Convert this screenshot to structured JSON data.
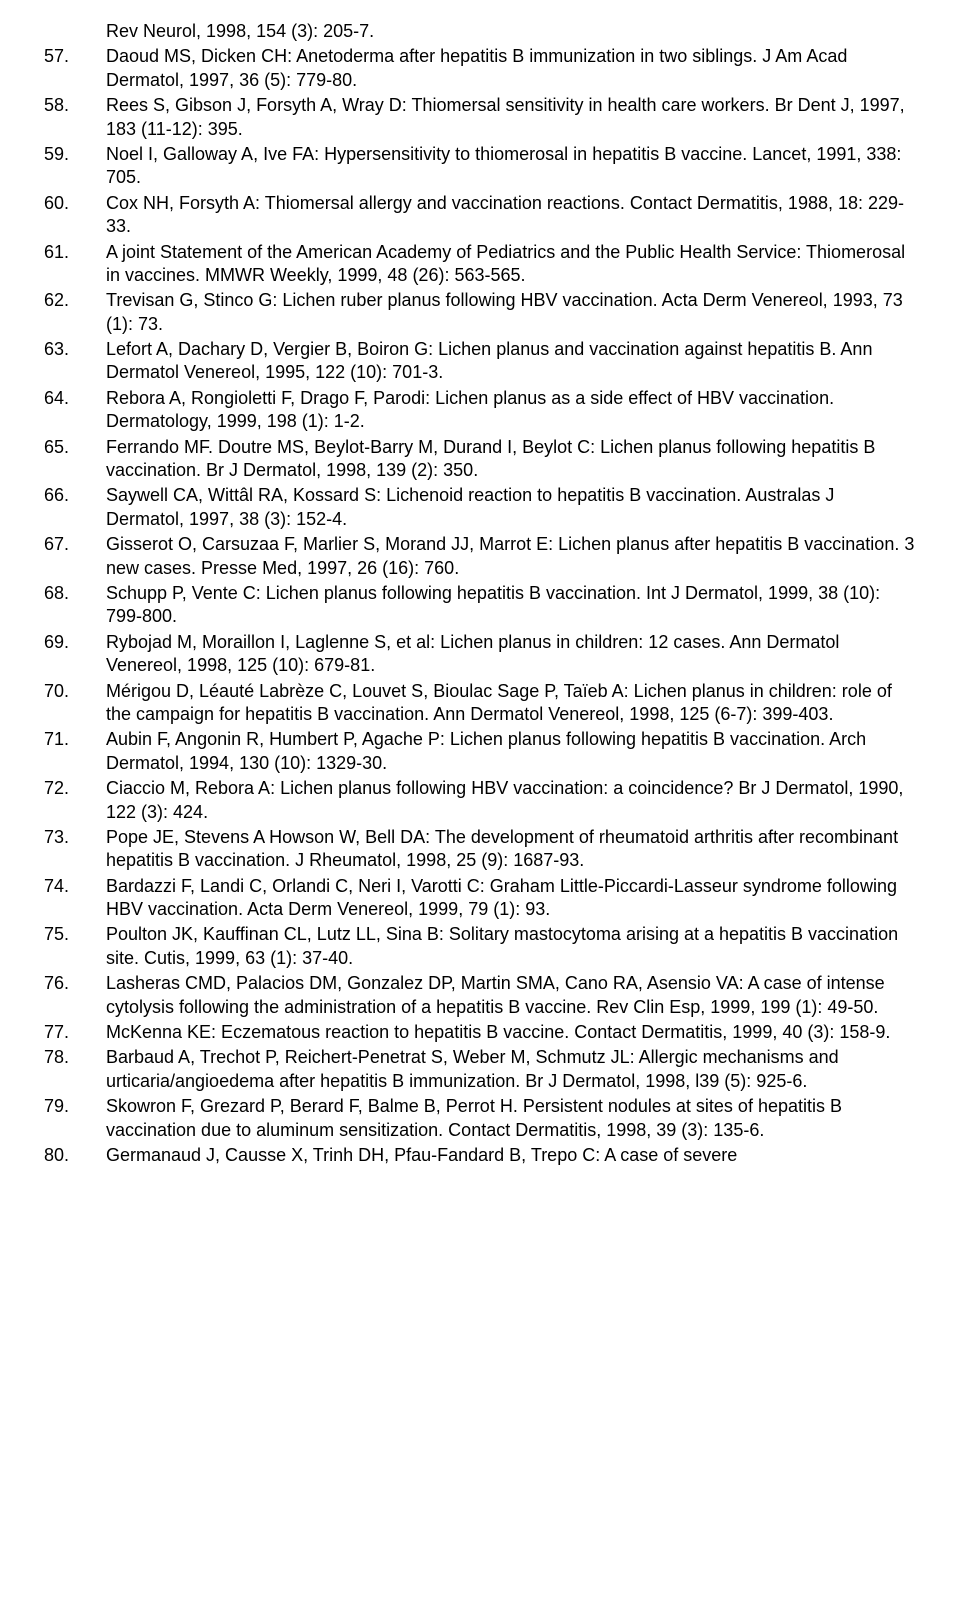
{
  "continuation_line": "Rev Neurol, 1998, 154 (3): 205-7.",
  "references": [
    {
      "num": "57.",
      "text": "Daoud MS, Dicken CH: Anetoderma after hepatitis B immunization in two siblings. J Am Acad Dermatol, 1997, 36 (5): 779-80."
    },
    {
      "num": "58.",
      "text": "Rees S, Gibson J, Forsyth A, Wray D: Thiomersal sensitivity in health care workers. Br Dent J, 1997, 183 (11-12): 395."
    },
    {
      "num": "59.",
      "text": "Noel I, Galloway A,  Ive FA: Hypersensitivity to thiomerosal in hepatitis B vaccine. Lancet, 1991, 338: 705."
    },
    {
      "num": "60.",
      "text": "Cox NH, Forsyth A: Thiomersal allergy and vaccination reactions. Contact Dermatitis, 1988, 18: 229-33."
    },
    {
      "num": "61.",
      "text": "A joint Statement of the American Academy of Pediatrics and the Public Health Service: Thiomerosal in vaccines. MMWR Weekly, 1999, 48 (26): 563-565."
    },
    {
      "num": "62.",
      "text": "Trevisan G, Stinco G: Lichen ruber planus following HBV vaccination. Acta Derm Venereol, 1993, 73 (1): 73."
    },
    {
      "num": "63.",
      "text": "Lefort A, Dachary D, Vergier B, Boiron G: Lichen planus and vaccination against hepatitis B. Ann Dermatol Venereol, 1995, 122 (10): 701-3."
    },
    {
      "num": "64.",
      "text": "Rebora A, Rongioletti F, Drago F, Parodi: Lichen planus as a side effect of HBV vaccination. Dermatology, 1999, 198 (1): 1-2."
    },
    {
      "num": "65.",
      "text": "Ferrando MF. Doutre MS, Beylot-Barry M, Durand I, Beylot C: Lichen planus following hepatitis B vaccination. Br J Dermatol, 1998, 139 (2): 350."
    },
    {
      "num": "66.",
      "text": "Saywell CA, Wittâl RA, Kossard S: Lichenoid reaction to hepatitis B vaccination. Australas J Dermatol, 1997, 38 (3): 152-4."
    },
    {
      "num": "67.",
      "text": "Gisserot O, Carsuzaa F, Marlier S, Morand JJ, Marrot E: Lichen planus after hepatitis B vaccination. 3 new cases. Presse Med, 1997, 26 (16): 760."
    },
    {
      "num": "68.",
      "text": "Schupp P, Vente C: Lichen planus following hepatitis B vaccination. Int J Dermatol, 1999, 38 (10): 799-800."
    },
    {
      "num": "69.",
      "text": "Rybojad M, Moraillon I, Laglenne S, et al: Lichen planus in children: 12 cases. Ann Dermatol Venereol, 1998, 125 (10): 679-81."
    },
    {
      "num": "70.",
      "text": "Mérigou D, Léauté Labrèze C, Louvet S, Bioulac Sage P, Taïeb A: Lichen planus in children: role of the campaign for hepatitis B vaccination. Ann Dermatol Venereol, 1998, 125 (6-7): 399-403."
    },
    {
      "num": "71.",
      "text": "Aubin F, Angonin R, Humbert P, Agache P: Lichen planus following hepatitis B vaccination. Arch Dermatol, 1994, 130 (10): 1329-30."
    },
    {
      "num": "72.",
      "text": "Ciaccio M, Rebora A: Lichen planus following HBV vaccination: a coincidence? Br J Dermatol, 1990, 122 (3): 424."
    },
    {
      "num": "73.",
      "text": "Pope JE, Stevens A Howson W, Bell DA: The development of rheumatoid arthritis after recombinant hepatitis B vaccination. J Rheumatol, 1998, 25 (9): 1687-93."
    },
    {
      "num": "74.",
      "text": "Bardazzi F, Landi C, Orlandi C, Neri I, Varotti C: Graham Little-Piccardi-Lasseur syndrome following HBV vaccination. Acta Derm Venereol, 1999, 79 (1): 93."
    },
    {
      "num": "75.",
      "text": "Poulton JK, Kauffinan CL, Lutz LL, Sina B: Solitary mastocytoma arising at a hepatitis B vaccination site. Cutis, 1999, 63 (1): 37-40."
    },
    {
      "num": "76.",
      "text": "Lasheras CMD, Palacios DM, Gonzalez DP, Martin SMA, Cano RA, Asensio VA: A case of intense cytolysis following the administration of a hepatitis B vaccine. Rev Clin Esp, 1999, 199 (1): 49-50."
    },
    {
      "num": "77.",
      "text": "McKenna KE: Eczematous reaction to hepatitis B vaccine. Contact Dermatitis, 1999, 40 (3): 158-9."
    },
    {
      "num": "78.",
      "text": "Barbaud A, Trechot P, Reichert-Penetrat S, Weber M, Schmutz JL: Allergic mechanisms and urticaria/angioedema after hepatitis B immunization. Br J Dermatol, 1998, l39 (5): 925-6."
    },
    {
      "num": "79.",
      "text": "Skowron F, Grezard P, Berard F, Balme B, Perrot H. Persistent nodules at sites of hepatitis B vaccination due to aluminum sensitization. Contact Dermatitis, 1998, 39 (3): 135-6."
    },
    {
      "num": "80.",
      "text": "Germanaud J, Causse X, Trinh DH, Pfau-Fandard B, Trepo C: A case of severe"
    }
  ]
}
